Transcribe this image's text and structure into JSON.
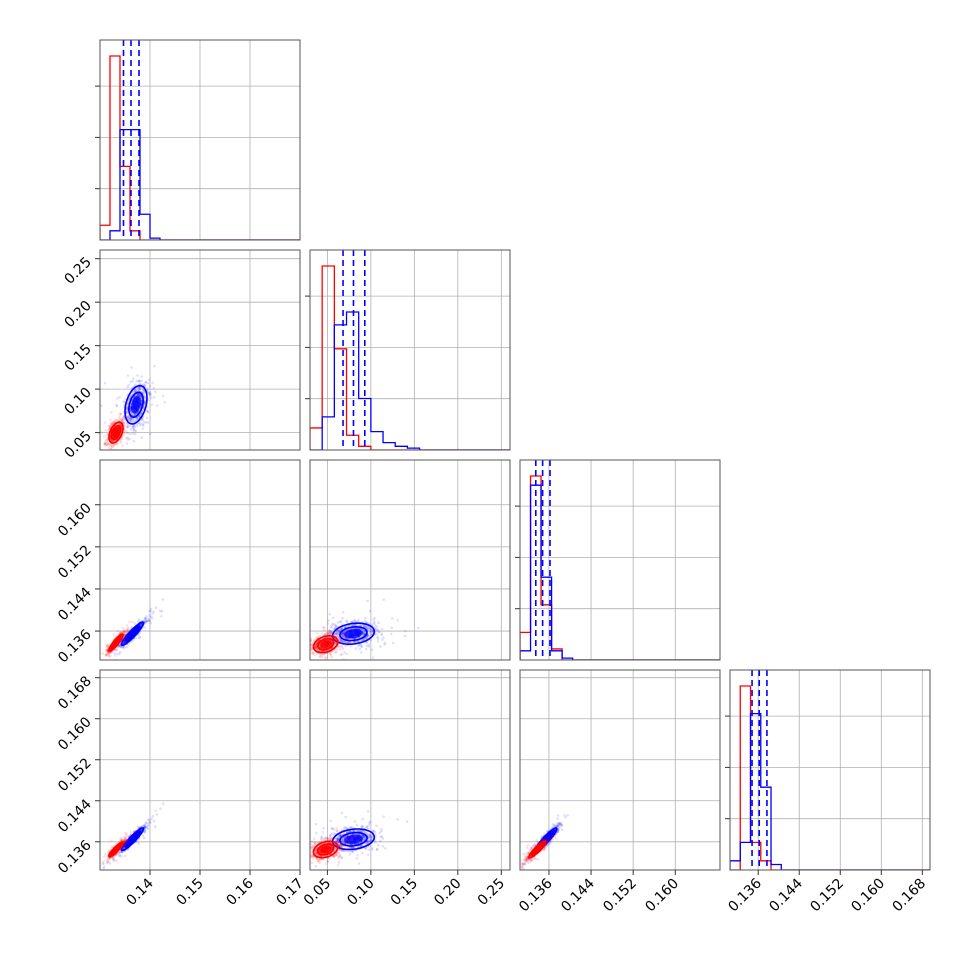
{
  "chart_data": {
    "type": "corner",
    "grid": true,
    "colors": {
      "red": "#ff0000",
      "blue": "#0000ff"
    },
    "params": [
      {
        "range": [
          0.13,
          0.17
        ],
        "ticks": [
          0.14,
          0.15,
          0.16,
          0.17
        ],
        "tick_labels": [
          "0.14",
          "0.15",
          "0.16",
          "0.17"
        ]
      },
      {
        "range": [
          0.03,
          0.26
        ],
        "ticks": [
          0.05,
          0.1,
          0.15,
          0.2,
          0.25
        ],
        "tick_labels": [
          "0.05",
          "0.10",
          "0.15",
          "0.20",
          "0.25"
        ]
      },
      {
        "range": [
          0.1305,
          0.1685
        ],
        "ticks": [
          0.136,
          0.144,
          0.152,
          0.16
        ],
        "tick_labels": [
          "0.136",
          "0.144",
          "0.152",
          "0.160"
        ]
      },
      {
        "range": [
          0.1305,
          0.1695
        ],
        "ticks": [
          0.136,
          0.144,
          0.152,
          0.16,
          0.168
        ],
        "tick_labels": [
          "0.136",
          "0.144",
          "0.152",
          "0.160",
          "0.168"
        ]
      }
    ],
    "histograms": [
      {
        "edges": [
          0.13,
          0.132,
          0.134,
          0.136,
          0.138,
          0.14,
          0.142,
          0.17
        ],
        "red": [
          0.08,
          1.0,
          0.4,
          0.05,
          0.0,
          0.0,
          0.0
        ],
        "blue": [
          0.0,
          0.05,
          0.6,
          0.6,
          0.14,
          0.01,
          0.0
        ],
        "quantiles": [
          0.1347,
          0.1362,
          0.1378
        ]
      },
      {
        "edges": [
          0.03,
          0.044,
          0.058,
          0.072,
          0.086,
          0.1,
          0.114,
          0.128,
          0.142,
          0.156,
          0.26
        ],
        "red": [
          0.12,
          1.0,
          0.55,
          0.08,
          0.02,
          0.0,
          0.0,
          0.0,
          0.0,
          0.0
        ],
        "blue": [
          0.0,
          0.18,
          0.68,
          0.75,
          0.28,
          0.1,
          0.04,
          0.02,
          0.01,
          0.0
        ],
        "quantiles": [
          0.068,
          0.08,
          0.093
        ]
      },
      {
        "edges": [
          0.1305,
          0.1325,
          0.1345,
          0.1365,
          0.1385,
          0.1405,
          0.1685
        ],
        "red": [
          0.15,
          1.0,
          0.3,
          0.06,
          0.0,
          0.0
        ],
        "blue": [
          0.05,
          0.95,
          0.45,
          0.05,
          0.01,
          0.0
        ],
        "quantiles": [
          0.1335,
          0.1348,
          0.1362
        ]
      },
      {
        "edges": [
          0.1305,
          0.1325,
          0.1345,
          0.1365,
          0.1385,
          0.1405,
          0.1695
        ],
        "red": [
          0.0,
          1.0,
          0.15,
          0.05,
          0.0,
          0.0
        ],
        "blue": [
          0.05,
          0.15,
          0.85,
          0.45,
          0.03,
          0.0
        ],
        "quantiles": [
          0.1348,
          0.1362,
          0.1377
        ]
      }
    ],
    "pairs": [
      {
        "x": 0,
        "y": 1,
        "red": {
          "cx": 0.1332,
          "cy": 0.05,
          "sx": 0.0007,
          "sy": 0.006,
          "rho": 0.45
        },
        "blue": {
          "cx": 0.1372,
          "cy": 0.082,
          "sx": 0.0011,
          "sy": 0.011,
          "rho": 0.35
        }
      },
      {
        "x": 0,
        "y": 2,
        "red": {
          "cx": 0.1332,
          "cy": 0.1338,
          "sx": 0.0007,
          "sy": 0.0008,
          "rho": 0.9
        },
        "blue": {
          "cx": 0.1365,
          "cy": 0.1355,
          "sx": 0.0011,
          "sy": 0.0011,
          "rho": 0.92
        }
      },
      {
        "x": 0,
        "y": 3,
        "red": {
          "cx": 0.1332,
          "cy": 0.1345,
          "sx": 0.0007,
          "sy": 0.0007,
          "rho": 0.9
        },
        "blue": {
          "cx": 0.1365,
          "cy": 0.1365,
          "sx": 0.0011,
          "sy": 0.0011,
          "rho": 0.93
        }
      },
      {
        "x": 1,
        "y": 2,
        "red": {
          "cx": 0.048,
          "cy": 0.1335,
          "sx": 0.007,
          "sy": 0.0008,
          "rho": 0.3
        },
        "blue": {
          "cx": 0.08,
          "cy": 0.1355,
          "sx": 0.012,
          "sy": 0.001,
          "rho": 0.2
        }
      },
      {
        "x": 1,
        "y": 3,
        "red": {
          "cx": 0.048,
          "cy": 0.1345,
          "sx": 0.007,
          "sy": 0.0008,
          "rho": 0.3
        },
        "blue": {
          "cx": 0.08,
          "cy": 0.1365,
          "sx": 0.012,
          "sy": 0.001,
          "rho": 0.2
        }
      },
      {
        "x": 2,
        "y": 3,
        "red": {
          "cx": 0.1338,
          "cy": 0.1345,
          "sx": 0.0008,
          "sy": 0.0008,
          "rho": 0.9
        },
        "blue": {
          "cx": 0.1355,
          "cy": 0.1365,
          "sx": 0.001,
          "sy": 0.0011,
          "rho": 0.92
        }
      }
    ]
  }
}
